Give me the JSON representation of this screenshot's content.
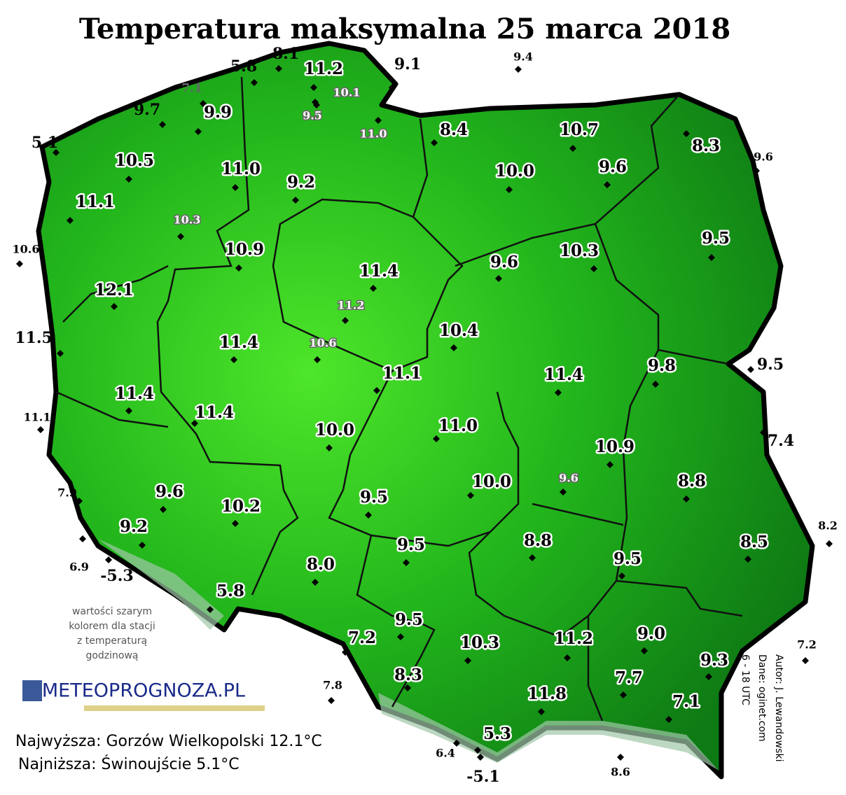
{
  "title": "Temperatura maksymalna 25 marca 2018",
  "stations_outside": [
    "8.1",
    "5.8",
    "9.1",
    "9.4",
    "9.7",
    "5.1",
    "9.6",
    "10.6",
    "11.5",
    "9.5",
    "11.1",
    "7.4",
    "7.9",
    "8.2",
    "6.9",
    "-5.3",
    "7.2",
    "7.8",
    "6.4",
    "-5.1",
    "8.6"
  ],
  "stations_inside": [
    "11.2",
    "9.9",
    "8.4",
    "10.7",
    "8.3",
    "10.5",
    "11.0",
    "9.2",
    "10.0",
    "9.6",
    "11.1",
    "9.5",
    "10.9",
    "9.6",
    "10.3",
    "11.4",
    "12.1",
    "10.4",
    "11.4",
    "9.8",
    "11.1",
    "11.4",
    "11.4",
    "11.4",
    "10.0",
    "11.0",
    "10.9",
    "8.8",
    "10.0",
    "9.6",
    "9.5",
    "10.2",
    "9.2",
    "9.5",
    "8.8",
    "8.5",
    "9.5",
    "8.0",
    "5.8",
    "9.5",
    "7.2",
    "10.3",
    "11.2",
    "9.0",
    "9.3",
    "7.7",
    "8.3",
    "7.1",
    "11.8",
    "5.3"
  ],
  "stations_hourly": [
    "7.1",
    "10.1",
    "9.5",
    "11.0",
    "10.3",
    "11.2",
    "10.6",
    "9.6"
  ],
  "note": [
    "wartości szarym",
    "kolorem dla stacji",
    "z temperaturą",
    "godzinową"
  ],
  "logo": "METEOPROGNOZA.PL",
  "credits": [
    "Autor: J. Lewandowski",
    "Dane: oginet.com",
    "6 - 18 UTC"
  ],
  "extremes": [
    "Najwyższa: Gorzów Wielkopolski 12.1°C",
    "Najniższa: Świnoujście 5.1°C"
  ]
}
